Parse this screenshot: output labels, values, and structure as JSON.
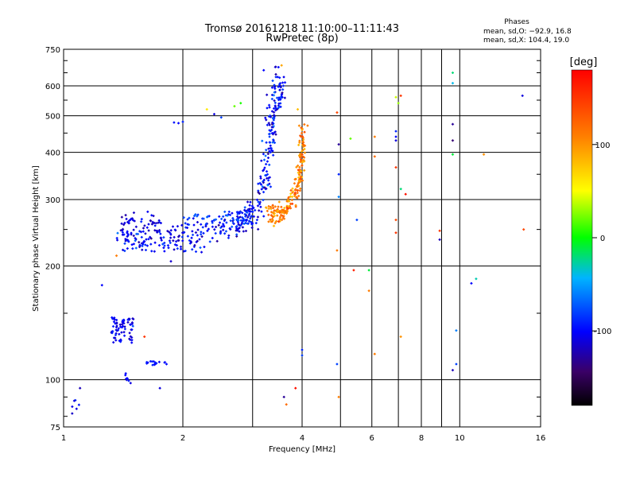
{
  "chart_data": {
    "type": "scatter",
    "title": "Tromsø 20161218 11:10:00–11:11:43",
    "subtitle": "RwPretec (8p)",
    "xlabel": "Frequency [MHz]",
    "ylabel": "Stationary phase Virtual Height [km]",
    "x_scale": "log",
    "y_scale": "log",
    "xlim": [
      1,
      16
    ],
    "ylim": [
      75,
      750
    ],
    "x_ticks": [
      1,
      2,
      4,
      6,
      8,
      10,
      16
    ],
    "x_minor_ticks": [
      3,
      5,
      7,
      9
    ],
    "x_tick_labels": [
      "1",
      "2",
      "4",
      "6",
      "8",
      "10",
      "16"
    ],
    "y_ticks": [
      75,
      100,
      200,
      300,
      400,
      500,
      600,
      750
    ],
    "y_tick_labels": [
      "75",
      "100",
      "200",
      "300",
      "400",
      "500",
      "600",
      "750"
    ],
    "grid": true,
    "stats_title": "Phases",
    "stats_lines": [
      "mean, sd,O: −92.9, 16.8",
      "mean, sd,X: 104.4, 19.0"
    ],
    "colorbar": {
      "label": "[deg]",
      "range": [
        -180,
        180
      ],
      "ticks": [
        100,
        0,
        -100
      ],
      "tick_labels": [
        "100",
        "0",
        "-100"
      ]
    },
    "segments": [
      {
        "name": "",
        "mode": "curve",
        "x": [
          1.38,
          1.45,
          1.55,
          1.65,
          1.8,
          1.95,
          2.1,
          2.3,
          2.5,
          2.7,
          2.85,
          3.0,
          3.1,
          3.2,
          3.3,
          3.35,
          3.45
        ],
        "y": [
          235,
          238,
          235,
          233,
          235,
          236,
          238,
          245,
          250,
          258,
          265,
          275,
          290,
          330,
          420,
          560,
          640
        ],
        "n": 340,
        "spread": 0.045,
        "phase": -100,
        "phase_sd": 15
      },
      {
        "name": "",
        "mode": "curve",
        "x": [
          3.3,
          3.4,
          3.5,
          3.6,
          3.72,
          3.82,
          3.9,
          3.95,
          3.98,
          4.0,
          4.02
        ],
        "y": [
          280,
          272,
          275,
          280,
          290,
          305,
          325,
          350,
          380,
          420,
          480
        ],
        "n": 200,
        "spread": 0.03,
        "phase": 110,
        "phase_sd": 18
      },
      {
        "name": "",
        "mode": "curve",
        "x": [
          3.2,
          3.3,
          3.4,
          3.5,
          3.55
        ],
        "y": [
          300,
          400,
          500,
          560,
          600
        ],
        "n": 90,
        "spread": 0.04,
        "phase": -95,
        "phase_sd": 18
      },
      {
        "name": "",
        "mode": "curve",
        "x": [
          1.38,
          1.45,
          1.55,
          1.65,
          1.75
        ],
        "y": [
          255,
          262,
          270,
          265,
          255
        ],
        "n": 40,
        "spread": 0.025,
        "phase": -110,
        "phase_sd": 10
      },
      {
        "name": "",
        "mode": "curve",
        "x": [
          2.0,
          2.2,
          2.45,
          2.7,
          2.9
        ],
        "y": [
          262,
          265,
          262,
          268,
          272
        ],
        "n": 50,
        "spread": 0.025,
        "phase": -85,
        "phase_sd": 12
      },
      {
        "name": "",
        "mode": "cluster",
        "x": [
          1.32,
          1.5
        ],
        "y": [
          125,
          148
        ],
        "n": 70,
        "phase": -105,
        "phase_sd": 10
      },
      {
        "name": "",
        "mode": "cluster",
        "x": [
          1.62,
          1.82
        ],
        "y": [
          109,
          112
        ],
        "n": 20,
        "phase": -95,
        "phase_sd": 8
      },
      {
        "name": "",
        "mode": "cluster",
        "x": [
          1.43,
          1.48
        ],
        "y": [
          97,
          104
        ],
        "n": 8,
        "phase": -100,
        "phase_sd": 8
      },
      {
        "name": "",
        "mode": "cluster",
        "x": [
          1.04,
          1.1
        ],
        "y": [
          78,
          90
        ],
        "n": 6,
        "phase": -100,
        "phase_sd": 10
      }
    ],
    "points": [
      {
        "x": 1.9,
        "y": 480,
        "phase": -95
      },
      {
        "x": 1.95,
        "y": 478,
        "phase": -100
      },
      {
        "x": 2.0,
        "y": 482,
        "phase": -90
      },
      {
        "x": 2.4,
        "y": 505,
        "phase": -110
      },
      {
        "x": 2.5,
        "y": 495,
        "phase": -80
      },
      {
        "x": 2.7,
        "y": 530,
        "phase": 20
      },
      {
        "x": 2.8,
        "y": 540,
        "phase": 5
      },
      {
        "x": 2.3,
        "y": 520,
        "phase": 60
      },
      {
        "x": 3.9,
        "y": 520,
        "phase": 80
      },
      {
        "x": 4.9,
        "y": 510,
        "phase": 140
      },
      {
        "x": 4.95,
        "y": 420,
        "phase": -130
      },
      {
        "x": 4.95,
        "y": 350,
        "phase": -90
      },
      {
        "x": 4.95,
        "y": 305,
        "phase": -60
      },
      {
        "x": 5.5,
        "y": 265,
        "phase": -80
      },
      {
        "x": 5.3,
        "y": 435,
        "phase": 20
      },
      {
        "x": 6.1,
        "y": 440,
        "phase": 110
      },
      {
        "x": 6.1,
        "y": 390,
        "phase": 120
      },
      {
        "x": 6.9,
        "y": 560,
        "phase": 40
      },
      {
        "x": 7.1,
        "y": 565,
        "phase": 150
      },
      {
        "x": 6.9,
        "y": 455,
        "phase": -90
      },
      {
        "x": 6.9,
        "y": 440,
        "phase": -100
      },
      {
        "x": 6.9,
        "y": 430,
        "phase": -110
      },
      {
        "x": 6.9,
        "y": 365,
        "phase": 150
      },
      {
        "x": 7.1,
        "y": 320,
        "phase": -20
      },
      {
        "x": 7.3,
        "y": 310,
        "phase": 170
      },
      {
        "x": 6.9,
        "y": 265,
        "phase": 140
      },
      {
        "x": 6.9,
        "y": 245,
        "phase": 150
      },
      {
        "x": 7.0,
        "y": 540,
        "phase": 30
      },
      {
        "x": 9.6,
        "y": 650,
        "phase": -20
      },
      {
        "x": 9.6,
        "y": 610,
        "phase": -40
      },
      {
        "x": 9.6,
        "y": 475,
        "phase": -130
      },
      {
        "x": 9.6,
        "y": 430,
        "phase": -140
      },
      {
        "x": 9.6,
        "y": 395,
        "phase": -10
      },
      {
        "x": 11.5,
        "y": 395,
        "phase": 100
      },
      {
        "x": 8.9,
        "y": 248,
        "phase": 150
      },
      {
        "x": 8.9,
        "y": 235,
        "phase": -120
      },
      {
        "x": 14.4,
        "y": 565,
        "phase": -110
      },
      {
        "x": 14.5,
        "y": 250,
        "phase": 140
      },
      {
        "x": 4.9,
        "y": 220,
        "phase": 110
      },
      {
        "x": 5.4,
        "y": 195,
        "phase": 160
      },
      {
        "x": 5.9,
        "y": 195,
        "phase": -10
      },
      {
        "x": 5.9,
        "y": 172,
        "phase": 110
      },
      {
        "x": 10.7,
        "y": 180,
        "phase": -100
      },
      {
        "x": 11.0,
        "y": 185,
        "phase": -30
      },
      {
        "x": 9.8,
        "y": 135,
        "phase": -60
      },
      {
        "x": 6.1,
        "y": 117,
        "phase": 110
      },
      {
        "x": 7.1,
        "y": 130,
        "phase": 100
      },
      {
        "x": 9.8,
        "y": 110,
        "phase": -80
      },
      {
        "x": 9.6,
        "y": 106,
        "phase": -120
      },
      {
        "x": 4.0,
        "y": 120,
        "phase": -90
      },
      {
        "x": 4.0,
        "y": 116,
        "phase": -80
      },
      {
        "x": 4.9,
        "y": 110,
        "phase": -80
      },
      {
        "x": 3.85,
        "y": 95,
        "phase": 170
      },
      {
        "x": 3.6,
        "y": 90,
        "phase": -130
      },
      {
        "x": 3.65,
        "y": 86,
        "phase": 120
      },
      {
        "x": 4.95,
        "y": 90,
        "phase": 110
      },
      {
        "x": 1.36,
        "y": 213,
        "phase": 110
      },
      {
        "x": 1.6,
        "y": 130,
        "phase": 150
      },
      {
        "x": 1.25,
        "y": 178,
        "phase": -100
      },
      {
        "x": 1.75,
        "y": 95,
        "phase": -110
      },
      {
        "x": 1.1,
        "y": 95,
        "phase": -120
      },
      {
        "x": 3.2,
        "y": 660,
        "phase": -100
      },
      {
        "x": 3.55,
        "y": 680,
        "phase": 90
      }
    ]
  }
}
